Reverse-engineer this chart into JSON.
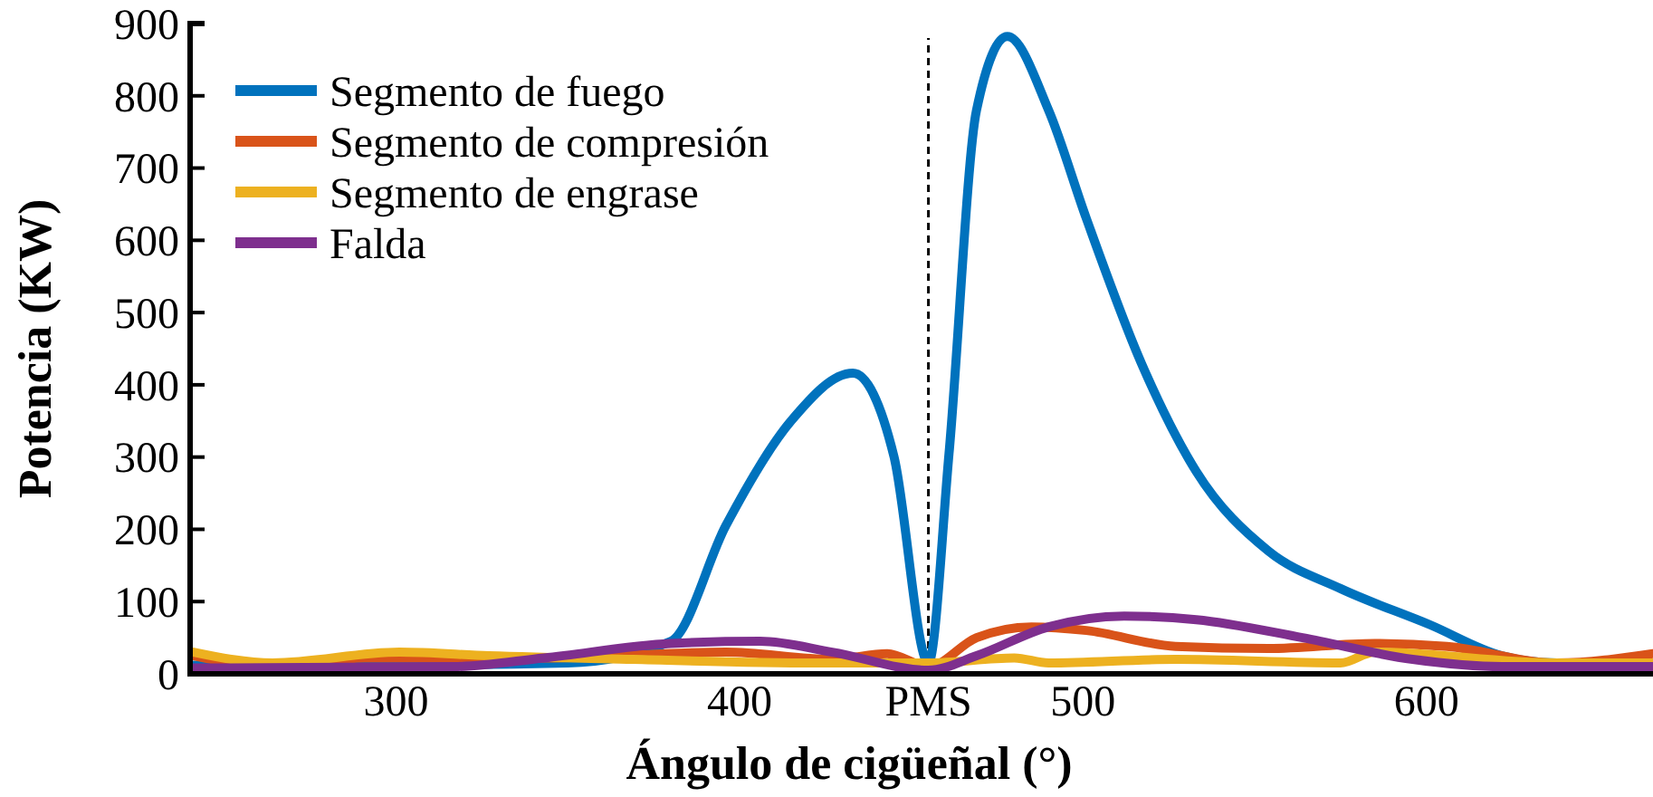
{
  "chart_data": {
    "type": "line",
    "xlabel": "Ángulo de cigüeñal (°)",
    "ylabel": "Potencia (KW)",
    "xlim": [
      240,
      666
    ],
    "ylim": [
      0,
      900
    ],
    "xticks": [
      300,
      400,
      {
        "value": 455,
        "label": "PMS"
      },
      500,
      600
    ],
    "yticks": [
      0,
      100,
      200,
      300,
      400,
      500,
      600,
      700,
      800,
      900
    ],
    "grid": false,
    "legend": "top left",
    "marker": "none",
    "line_style": "solid",
    "ref_lines": [
      {
        "axis": "x",
        "value": 455,
        "line_style": "dashed",
        "color": "#000000"
      }
    ],
    "series": [
      {
        "name": "Segmento de fuego",
        "color": "#0072bd",
        "x": [
          241,
          300,
          350,
          380,
          396,
          415,
          433,
          445,
          455,
          461,
          469,
          478,
          490,
          501,
          517,
          533,
          554,
          575,
          601,
          622,
          638,
          666
        ],
        "values": [
          12,
          12,
          15,
          45,
          205,
          350,
          416,
          300,
          15,
          305,
          780,
          882,
          780,
          630,
          430,
          280,
          170,
          118,
          68,
          25,
          15,
          15
        ]
      },
      {
        "name": "Segmento de compresión",
        "color": "#d95319",
        "x": [
          241,
          264,
          291,
          343,
          396,
          427,
          443,
          455,
          469,
          485,
          501,
          527,
          554,
          585,
          606,
          638,
          666
        ],
        "values": [
          25,
          10,
          22,
          22,
          30,
          20,
          28,
          10,
          50,
          65,
          60,
          38,
          35,
          42,
          38,
          15,
          28
        ]
      },
      {
        "name": "Segmento de engrase",
        "color": "#edb120",
        "x": [
          241,
          264,
          301,
          327,
          369,
          422,
          455,
          480,
          490,
          527,
          575,
          585,
          638,
          666
        ],
        "values": [
          30,
          15,
          30,
          25,
          20,
          15,
          15,
          22,
          15,
          20,
          15,
          30,
          15,
          15
        ]
      },
      {
        "name": "Falda",
        "color": "#7e2f8e",
        "x": [
          241,
          317,
          343,
          380,
          406,
          427,
          455,
          469,
          490,
          512,
          533,
          564,
          596,
          622,
          666
        ],
        "values": [
          8,
          10,
          22,
          42,
          45,
          30,
          5,
          25,
          65,
          80,
          75,
          50,
          20,
          10,
          10
        ]
      }
    ]
  }
}
